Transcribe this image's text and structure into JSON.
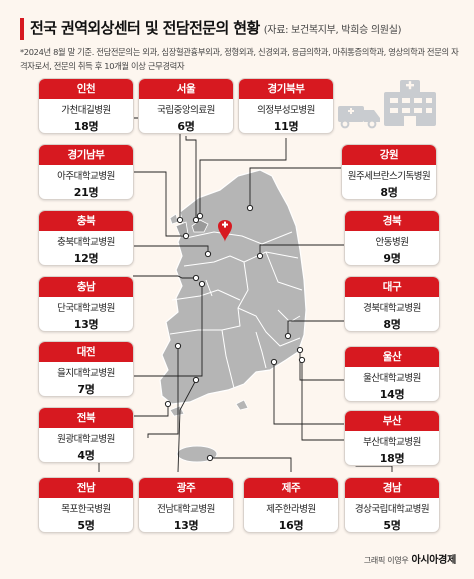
{
  "header": {
    "title": "전국 권역외상센터 및 전담전문의 현황",
    "source": "(자료: 보건복지부, 박희승 의원실)",
    "note": "*2024년 8월 말 기준. 전담전문의는 외과, 심장혈관흉부외과, 정형외과, 신경외과, 응급의학과, 마취통증의학과, 영상의학과 전문의 자격자로서, 전문의 취득 후 10개월 이상 근무경력자"
  },
  "regions": [
    {
      "region": "인천",
      "hospital": "가천대길병원",
      "count": "18명"
    },
    {
      "region": "서울",
      "hospital": "국립중앙의료원",
      "count": "6명"
    },
    {
      "region": "경기북부",
      "hospital": "의정부성모병원",
      "count": "11명"
    },
    {
      "region": "경기남부",
      "hospital": "아주대학교병원",
      "count": "21명"
    },
    {
      "region": "강원",
      "hospital": "원주세브란스기독병원",
      "count": "8명"
    },
    {
      "region": "충북",
      "hospital": "충북대학교병원",
      "count": "12명"
    },
    {
      "region": "경북",
      "hospital": "안동병원",
      "count": "9명"
    },
    {
      "region": "충남",
      "hospital": "단국대학교병원",
      "count": "13명"
    },
    {
      "region": "대구",
      "hospital": "경북대학교병원",
      "count": "8명"
    },
    {
      "region": "대전",
      "hospital": "을지대학교병원",
      "count": "7명"
    },
    {
      "region": "울산",
      "hospital": "울산대학교병원",
      "count": "14명"
    },
    {
      "region": "전북",
      "hospital": "원광대학교병원",
      "count": "4명"
    },
    {
      "region": "부산",
      "hospital": "부산대학교병원",
      "count": "18명"
    },
    {
      "region": "전남",
      "hospital": "목포한국병원",
      "count": "5명"
    },
    {
      "region": "광주",
      "hospital": "전남대학교병원",
      "count": "13명"
    },
    {
      "region": "제주",
      "hospital": "제주한라병원",
      "count": "16명"
    },
    {
      "region": "경남",
      "hospital": "경상국립대학교병원",
      "count": "5명"
    }
  ],
  "credit": {
    "prefix": "그래픽 이영우",
    "brand": "아시아경제"
  },
  "colors": {
    "accent": "#d71920",
    "map_fill": "#b5b5b5",
    "icon": "#c9ccd0"
  },
  "icons": [
    "ambulance-icon",
    "hospital-building-icon",
    "hospital-marker-icon"
  ]
}
